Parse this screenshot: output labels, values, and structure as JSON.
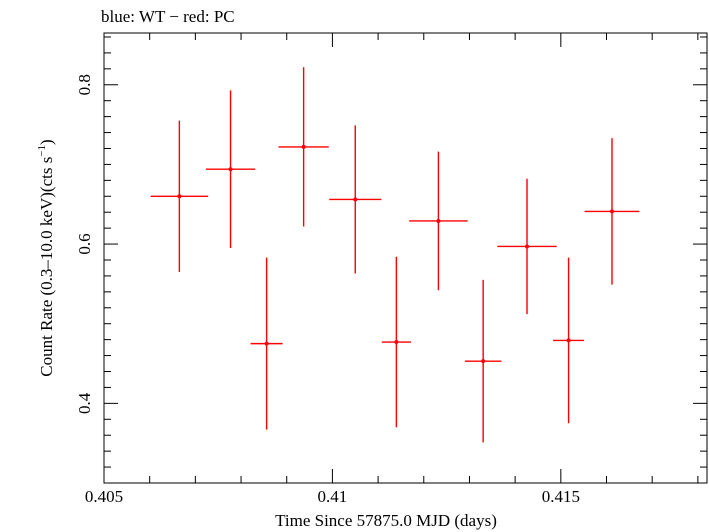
{
  "chart_data": {
    "type": "scatter",
    "title": "blue: WT − red: PC",
    "xlabel": "Time Since 57875.0 MJD (days)",
    "ylabel_parts": [
      "Count Rate (0.3–10.0 keV)(cts s",
      "−1",
      ")"
    ],
    "xlim": [
      0.405,
      0.4182
    ],
    "ylim": [
      0.3,
      0.865
    ],
    "x_ticks": [
      0.405,
      0.41,
      0.415
    ],
    "x_tick_labels": [
      "0.405",
      "0.41",
      "0.415"
    ],
    "y_ticks": [
      0.4,
      0.6,
      0.8
    ],
    "y_tick_labels": [
      "0.4",
      "0.6",
      "0.8"
    ],
    "grid": false,
    "series": [
      {
        "color": "#ff0000",
        "points": [
          {
            "x": 0.40665,
            "xerr": 0.00063,
            "y": 0.66,
            "yerr": 0.095
          },
          {
            "x": 0.40777,
            "xerr": 0.00054,
            "y": 0.694,
            "yerr": 0.099
          },
          {
            "x": 0.40856,
            "xerr": 0.00035,
            "y": 0.475,
            "yerr": 0.108
          },
          {
            "x": 0.40937,
            "xerr": 0.00055,
            "y": 0.722,
            "yerr": 0.1
          },
          {
            "x": 0.4105,
            "xerr": 0.00057,
            "y": 0.656,
            "yerr": 0.093
          },
          {
            "x": 0.4114,
            "xerr": 0.00032,
            "y": 0.477,
            "yerr": 0.107
          },
          {
            "x": 0.41232,
            "xerr": 0.00064,
            "y": 0.629,
            "yerr": 0.087
          },
          {
            "x": 0.4133,
            "xerr": 0.0004,
            "y": 0.453,
            "yerr": 0.102
          },
          {
            "x": 0.41426,
            "xerr": 0.00065,
            "y": 0.597,
            "yerr": 0.085
          },
          {
            "x": 0.41517,
            "xerr": 0.00034,
            "y": 0.479,
            "yerr": 0.104
          },
          {
            "x": 0.41612,
            "xerr": 0.0006,
            "y": 0.641,
            "yerr": 0.092
          }
        ]
      }
    ]
  }
}
